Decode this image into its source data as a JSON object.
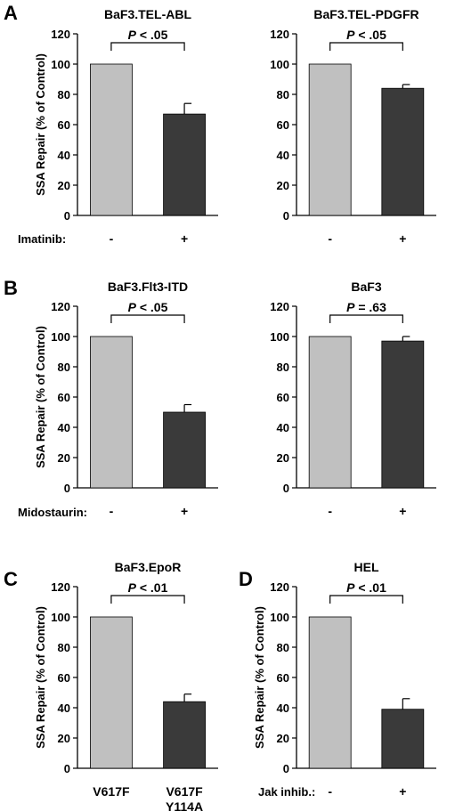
{
  "figure": {
    "panels": [
      {
        "letter": "A",
        "row_label": "Imatinib:"
      },
      {
        "letter": "B",
        "row_label": "Midostaurin:"
      },
      {
        "letter": "C",
        "row_label": ""
      },
      {
        "letter": "D",
        "row_label": "Jak inhib.:"
      }
    ]
  },
  "colors": {
    "control": "#c0c0c0",
    "treated": "#3a3a3a",
    "axis": "#000000"
  },
  "chart_data": [
    {
      "type": "bar",
      "panel": "A",
      "title": "BaF3.TEL-ABL",
      "ylabel": "SSA Repair (% of Control)",
      "ylim": [
        0,
        120
      ],
      "yticks": [
        0,
        20,
        40,
        60,
        80,
        100,
        120
      ],
      "categories": [
        "-",
        "+"
      ],
      "values": [
        100,
        67
      ],
      "error": [
        0,
        7
      ],
      "pvalue": "P < .05"
    },
    {
      "type": "bar",
      "panel": "A",
      "title": "BaF3.TEL-PDGFR",
      "ylabel": "",
      "ylim": [
        0,
        120
      ],
      "yticks": [
        0,
        20,
        40,
        60,
        80,
        100,
        120
      ],
      "categories": [
        "-",
        "+"
      ],
      "values": [
        100,
        84
      ],
      "error": [
        0,
        2.5
      ],
      "pvalue": "P < .05"
    },
    {
      "type": "bar",
      "panel": "B",
      "title": "BaF3.Flt3-ITD",
      "ylabel": "SSA Repair (% of Control)",
      "ylim": [
        0,
        120
      ],
      "yticks": [
        0,
        20,
        40,
        60,
        80,
        100,
        120
      ],
      "categories": [
        "-",
        "+"
      ],
      "values": [
        100,
        50
      ],
      "error": [
        0,
        5
      ],
      "pvalue": "P < .05"
    },
    {
      "type": "bar",
      "panel": "B",
      "title": "BaF3",
      "ylabel": "",
      "ylim": [
        0,
        120
      ],
      "yticks": [
        0,
        20,
        40,
        60,
        80,
        100,
        120
      ],
      "categories": [
        "-",
        "+"
      ],
      "values": [
        100,
        97
      ],
      "error": [
        0,
        3
      ],
      "pvalue": "P = .63"
    },
    {
      "type": "bar",
      "panel": "C",
      "title": "BaF3.EpoR",
      "ylabel": "SSA Repair (% of Control)",
      "ylim": [
        0,
        120
      ],
      "yticks": [
        0,
        20,
        40,
        60,
        80,
        100,
        120
      ],
      "categories": [
        "V617F",
        "V617F\nY114A"
      ],
      "values": [
        100,
        44
      ],
      "error": [
        0,
        5
      ],
      "pvalue": "P < .01"
    },
    {
      "type": "bar",
      "panel": "D",
      "title": "HEL",
      "ylabel": "SSA Repair (% of Control)",
      "ylim": [
        0,
        120
      ],
      "yticks": [
        0,
        20,
        40,
        60,
        80,
        100,
        120
      ],
      "categories": [
        "-",
        "+"
      ],
      "values": [
        100,
        39
      ],
      "error": [
        0,
        7
      ],
      "pvalue": "P < .01"
    }
  ]
}
